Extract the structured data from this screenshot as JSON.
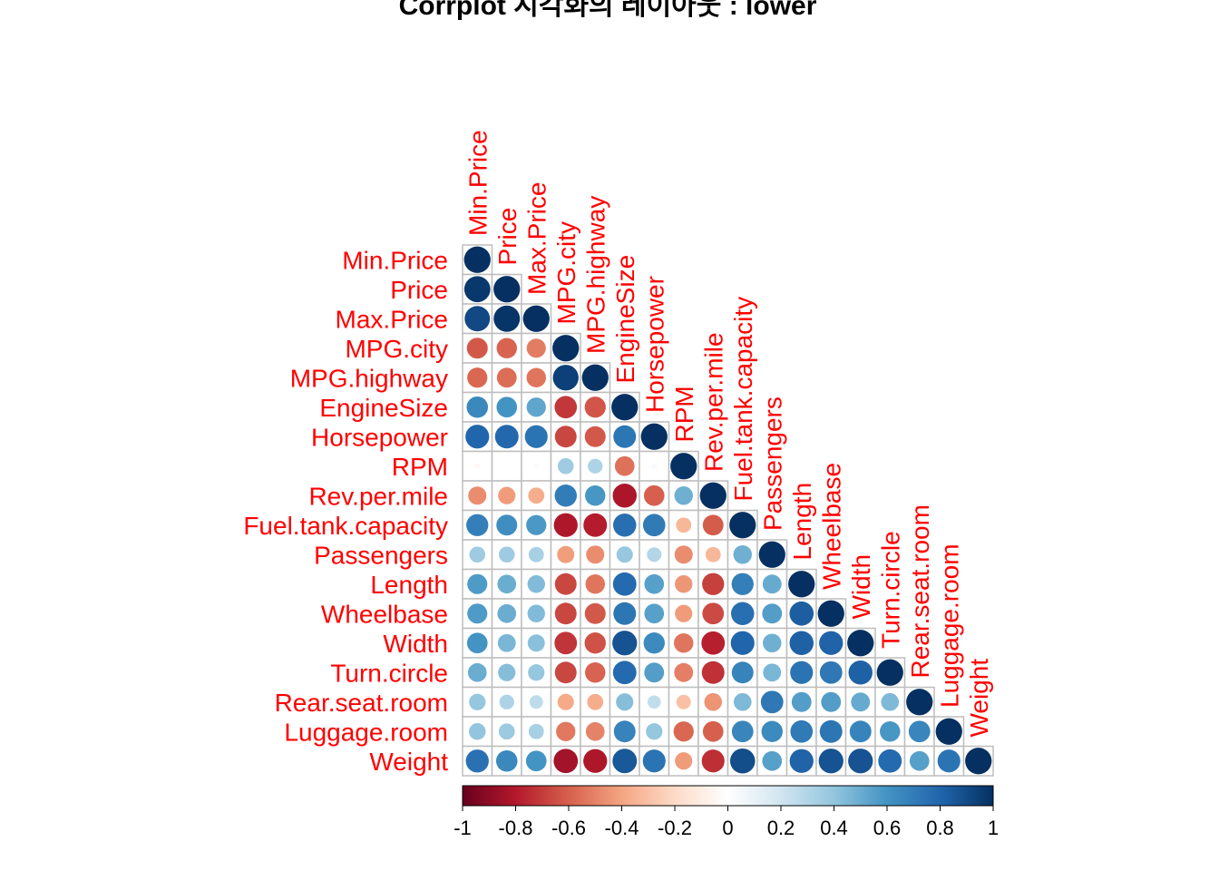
{
  "chart_data": {
    "type": "heatmap",
    "title": "Corrplot 시각화의 레이아웃 : lower",
    "method": "circle",
    "layout": "lower",
    "label_color": "#FF0000",
    "variables": [
      "Min.Price",
      "Price",
      "Max.Price",
      "MPG.city",
      "MPG.highway",
      "EngineSize",
      "Horsepower",
      "RPM",
      "Rev.per.mile",
      "Fuel.tank.capacity",
      "Passengers",
      "Length",
      "Wheelbase",
      "Width",
      "Turn.circle",
      "Rear.seat.room",
      "Luggage.room",
      "Weight"
    ],
    "matrix": [
      [
        1
      ],
      [
        0.97,
        1
      ],
      [
        0.91,
        0.98,
        1
      ],
      [
        -0.62,
        -0.59,
        -0.52,
        1
      ],
      [
        -0.58,
        -0.56,
        -0.54,
        0.94,
        1
      ],
      [
        0.65,
        0.6,
        0.53,
        -0.71,
        -0.63,
        1
      ],
      [
        0.8,
        0.79,
        0.74,
        -0.67,
        -0.62,
        0.73,
        1
      ],
      [
        -0.04,
        -0.01,
        0.03,
        0.36,
        0.31,
        -0.55,
        0.04,
        1
      ],
      [
        -0.47,
        -0.43,
        -0.37,
        0.7,
        0.59,
        -0.82,
        -0.6,
        0.49,
        1
      ],
      [
        0.69,
        0.62,
        0.58,
        -0.81,
        -0.79,
        0.76,
        0.71,
        -0.33,
        -0.61,
        1
      ],
      [
        0.36,
        0.36,
        0.33,
        -0.42,
        -0.47,
        0.38,
        0.3,
        -0.47,
        -0.33,
        0.49,
        1
      ],
      [
        0.57,
        0.5,
        0.44,
        -0.67,
        -0.54,
        0.78,
        0.55,
        -0.44,
        -0.69,
        0.69,
        0.51,
        1
      ],
      [
        0.57,
        0.5,
        0.44,
        -0.67,
        -0.62,
        0.73,
        0.55,
        -0.43,
        -0.66,
        0.76,
        0.56,
        0.83,
        1
      ],
      [
        0.6,
        0.46,
        0.42,
        -0.72,
        -0.64,
        0.87,
        0.64,
        -0.54,
        -0.78,
        0.8,
        0.49,
        0.82,
        0.81,
        1
      ],
      [
        0.5,
        0.43,
        0.39,
        -0.67,
        -0.59,
        0.78,
        0.56,
        -0.51,
        -0.73,
        0.67,
        0.46,
        0.74,
        0.72,
        0.82,
        1
      ],
      [
        0.39,
        0.31,
        0.26,
        -0.38,
        -0.37,
        0.43,
        0.25,
        -0.3,
        -0.45,
        0.45,
        0.72,
        0.56,
        0.56,
        0.51,
        0.45,
        1
      ],
      [
        0.4,
        0.37,
        0.33,
        -0.53,
        -0.5,
        0.67,
        0.39,
        -0.58,
        -0.6,
        0.66,
        0.64,
        0.71,
        0.73,
        0.67,
        0.59,
        0.66,
        1
      ],
      [
        0.75,
        0.65,
        0.6,
        -0.84,
        -0.81,
        0.85,
        0.74,
        -0.43,
        -0.74,
        0.89,
        0.55,
        0.81,
        0.87,
        0.87,
        0.78,
        0.55,
        0.74,
        1
      ]
    ],
    "colorbar": {
      "range": [
        -1,
        1
      ],
      "ticks": [
        "-1",
        "-0.8",
        "-0.6",
        "-0.4",
        "-0.2",
        "0",
        "0.2",
        "0.4",
        "0.6",
        "0.8",
        "1"
      ]
    }
  }
}
